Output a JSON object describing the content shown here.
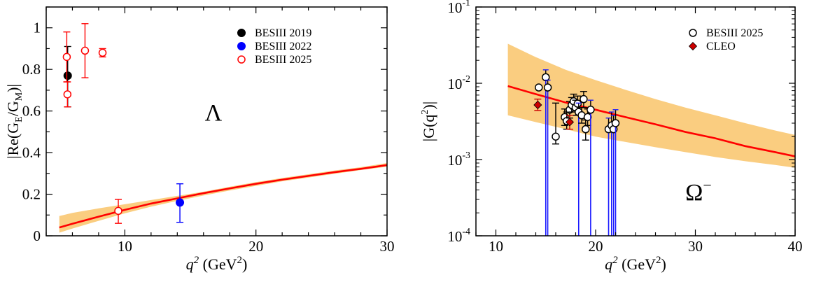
{
  "chart_data": [
    {
      "type": "scatter",
      "xlabel": "q",
      "xlabel_sup": "2",
      "xlabel_units": "(GeV",
      "xlabel_units_sup": "2",
      "xlabel_units_close": ")",
      "ylabel": "|Re(G_E/G_M)|",
      "ylabel_parts": {
        "a": "|Re(G",
        "sub1": "E",
        "mid": "/G",
        "sub2": "M",
        "end": ")|"
      },
      "xlim": [
        4,
        30
      ],
      "ylim": [
        0,
        1.1
      ],
      "x_ticks": [
        10,
        20,
        30
      ],
      "y_ticks": [
        0,
        0.2,
        0.4,
        0.6,
        0.8,
        1
      ],
      "y_tick_labels": [
        "0",
        "0.2",
        "0.4",
        "0.6",
        "0.8",
        "1"
      ],
      "annotation": "Λ",
      "legend_position": "top-right",
      "series": [
        {
          "name": "BESIII 2019",
          "marker": "filled-circle",
          "color": "#000000",
          "points": [
            {
              "x": 5.64,
              "y": 0.77,
              "ylo": 0.62,
              "yhi": 0.91
            }
          ]
        },
        {
          "name": "BESIII 2022",
          "marker": "filled-circle",
          "color": "#0000ff",
          "points": [
            {
              "x": 14.2,
              "y": 0.16,
              "ylo": 0.065,
              "yhi": 0.25
            }
          ]
        },
        {
          "name": "BESIII 2025",
          "marker": "open-circle",
          "color": "#ff0000",
          "points": [
            {
              "x": 5.57,
              "y": 0.86,
              "ylo": 0.74,
              "yhi": 0.98
            },
            {
              "x": 5.62,
              "y": 0.68,
              "ylo": 0.62,
              "yhi": 0.74
            },
            {
              "x": 6.96,
              "y": 0.89,
              "ylo": 0.76,
              "yhi": 1.02
            },
            {
              "x": 8.3,
              "y": 0.88,
              "ylo": 0.86,
              "yhi": 0.9
            },
            {
              "x": 9.5,
              "y": 0.12,
              "ylo": 0.06,
              "yhi": 0.175
            }
          ]
        }
      ],
      "curve": {
        "color": "#ff0000",
        "x": [
          5,
          6,
          8,
          10,
          12,
          14,
          16,
          18,
          20,
          22,
          24,
          26,
          28,
          30
        ],
        "y": [
          0.04,
          0.058,
          0.092,
          0.125,
          0.155,
          0.18,
          0.205,
          0.228,
          0.25,
          0.27,
          0.288,
          0.306,
          0.322,
          0.34
        ],
        "band_lo": [
          0.015,
          0.035,
          0.072,
          0.108,
          0.14,
          0.168,
          0.194,
          0.218,
          0.24,
          0.262,
          0.28,
          0.298,
          0.316,
          0.332
        ],
        "band_hi": [
          0.095,
          0.11,
          0.132,
          0.152,
          0.172,
          0.192,
          0.212,
          0.236,
          0.258,
          0.278,
          0.296,
          0.314,
          0.33,
          0.35
        ]
      }
    },
    {
      "type": "scatter",
      "xlabel": "q",
      "xlabel_sup": "2",
      "xlabel_units": "(GeV",
      "xlabel_units_sup": "2",
      "xlabel_units_close": ")",
      "ylabel": "|G(q^2)|",
      "ylabel_parts": {
        "a": "|G(q",
        "sup": "2",
        "end": ")|"
      },
      "xlim": [
        8,
        40
      ],
      "ylim": [
        0.0001,
        0.1
      ],
      "y_scale": "log",
      "x_ticks": [
        10,
        20,
        30,
        40
      ],
      "y_ticks": [
        0.0001,
        0.001,
        0.01,
        0.1
      ],
      "y_tick_exponents": [
        "-4",
        "-3",
        "-2",
        "-1"
      ],
      "y_tick_base": "10",
      "annotation": "Ω",
      "annotation_sup": "−",
      "legend_position": "top-right",
      "series": [
        {
          "name": "BESIII 2025",
          "marker": "open-circle",
          "color": "#000000",
          "points": [
            {
              "x": 14.3,
              "y": 0.0088,
              "ylo": 0.0088,
              "yhi": 0.0088
            },
            {
              "x": 15.0,
              "y": 0.012,
              "ylo": 0.0001,
              "yhi": 0.015
            },
            {
              "x": 15.2,
              "y": 0.0088,
              "ylo": 0.0001,
              "yhi": 0.011
            },
            {
              "x": 16.0,
              "y": 0.002,
              "ylo": 0.0016,
              "yhi": 0.0055
            },
            {
              "x": 16.9,
              "y": 0.0036,
              "ylo": 0.0028,
              "yhi": 0.0046
            },
            {
              "x": 17.1,
              "y": 0.0032,
              "ylo": 0.0025,
              "yhi": 0.0042
            },
            {
              "x": 17.4,
              "y": 0.0045,
              "ylo": 0.0035,
              "yhi": 0.0058
            },
            {
              "x": 17.6,
              "y": 0.0052,
              "ylo": 0.0042,
              "yhi": 0.0065
            },
            {
              "x": 17.8,
              "y": 0.0058,
              "ylo": 0.0046,
              "yhi": 0.0072
            },
            {
              "x": 18.0,
              "y": 0.0048,
              "ylo": 0.0038,
              "yhi": 0.006
            },
            {
              "x": 18.2,
              "y": 0.0054,
              "ylo": 0.0044,
              "yhi": 0.0068
            },
            {
              "x": 18.3,
              "y": 0.0042,
              "ylo": 0.0001,
              "yhi": 0.0055
            },
            {
              "x": 18.6,
              "y": 0.0038,
              "ylo": 0.003,
              "yhi": 0.0048
            },
            {
              "x": 18.8,
              "y": 0.0062,
              "ylo": 0.0048,
              "yhi": 0.0078
            },
            {
              "x": 19.0,
              "y": 0.0025,
              "ylo": 0.0018,
              "yhi": 0.0033
            },
            {
              "x": 19.2,
              "y": 0.0036,
              "ylo": 0.0028,
              "yhi": 0.0046
            },
            {
              "x": 19.5,
              "y": 0.0045,
              "ylo": 0.0001,
              "yhi": 0.006
            },
            {
              "x": 21.3,
              "y": 0.0025,
              "ylo": 0.0001,
              "yhi": 0.0035
            },
            {
              "x": 21.6,
              "y": 0.0028,
              "ylo": 0.0001,
              "yhi": 0.0042
            },
            {
              "x": 21.8,
              "y": 0.0025,
              "ylo": 0.0001,
              "yhi": 0.0038
            },
            {
              "x": 22.0,
              "y": 0.003,
              "ylo": 0.0001,
              "yhi": 0.0045
            }
          ]
        },
        {
          "name": "CLEO",
          "marker": "filled-diamond",
          "color": "#cc0000",
          "points": [
            {
              "x": 14.2,
              "y": 0.0052,
              "ylo": 0.0044,
              "yhi": 0.0062
            },
            {
              "x": 17.4,
              "y": 0.0031,
              "ylo": 0.0025,
              "yhi": 0.0038
            }
          ]
        }
      ],
      "curve": {
        "color": "#ff0000",
        "x": [
          11.2,
          14,
          17,
          20,
          23,
          26,
          29,
          32,
          35,
          38,
          40
        ],
        "y": [
          0.0092,
          0.0072,
          0.0056,
          0.0045,
          0.0036,
          0.0029,
          0.0023,
          0.0019,
          0.0015,
          0.00125,
          0.0011
        ],
        "band_lo": [
          0.0038,
          0.0031,
          0.0025,
          0.002,
          0.0017,
          0.00145,
          0.00125,
          0.00108,
          0.00095,
          0.00085,
          0.00078
        ],
        "band_hi": [
          0.033,
          0.022,
          0.015,
          0.011,
          0.0082,
          0.0062,
          0.0048,
          0.0038,
          0.003,
          0.0024,
          0.0021
        ]
      }
    }
  ]
}
